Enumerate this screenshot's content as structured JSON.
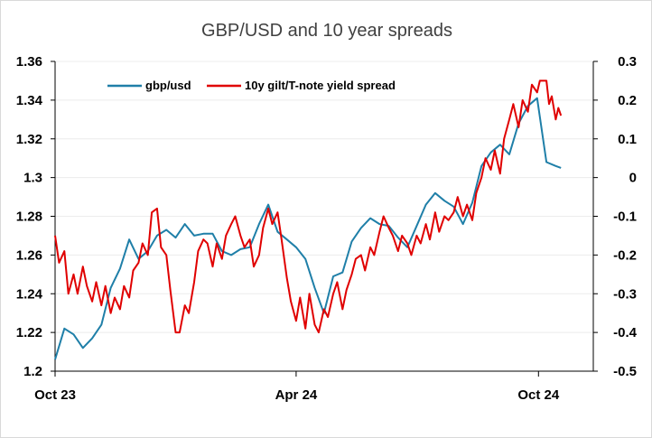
{
  "chart_data": {
    "type": "line",
    "title": "GBP/USD and 10 year spreads",
    "xlabel": "",
    "ylabel": "",
    "x_tick_labels": [
      "Oct 23",
      "Apr 24",
      "Oct 24"
    ],
    "x_range": [
      "2023-10-02",
      "2024-10-18"
    ],
    "x_tick_dates": [
      "2023-10-02",
      "2024-04-01",
      "2024-10-01"
    ],
    "y_left": {
      "lim": [
        1.2,
        1.36
      ],
      "ticks": [
        1.2,
        1.22,
        1.24,
        1.26,
        1.28,
        1.3,
        1.32,
        1.34,
        1.36
      ],
      "tick_labels": [
        "1.2",
        "1.22",
        "1.24",
        "1.26",
        "1.28",
        "1.3",
        "1.32",
        "1.34",
        "1.36"
      ]
    },
    "y_right": {
      "lim": [
        -0.5,
        0.3
      ],
      "ticks": [
        -0.5,
        -0.4,
        -0.3,
        -0.2,
        -0.1,
        0,
        0.1,
        0.2,
        0.3
      ],
      "tick_labels": [
        "-0.5",
        "-0.4",
        "-0.3",
        "-0.2",
        "-0.1",
        "0",
        "0.1",
        "0.2",
        "0.3"
      ]
    },
    "grid": true,
    "legend_position": "top-left",
    "series": [
      {
        "name": "gbp/usd",
        "axis": "left",
        "color": "#1f7fa8",
        "points": [
          [
            "2023-10-02",
            1.206
          ],
          [
            "2023-10-09",
            1.222
          ],
          [
            "2023-10-16",
            1.219
          ],
          [
            "2023-10-23",
            1.212
          ],
          [
            "2023-10-30",
            1.217
          ],
          [
            "2023-11-06",
            1.224
          ],
          [
            "2023-11-13",
            1.243
          ],
          [
            "2023-11-20",
            1.253
          ],
          [
            "2023-11-27",
            1.268
          ],
          [
            "2023-12-04",
            1.258
          ],
          [
            "2023-12-11",
            1.262
          ],
          [
            "2023-12-18",
            1.27
          ],
          [
            "2023-12-25",
            1.273
          ],
          [
            "2024-01-01",
            1.269
          ],
          [
            "2024-01-08",
            1.276
          ],
          [
            "2024-01-15",
            1.27
          ],
          [
            "2024-01-22",
            1.271
          ],
          [
            "2024-01-29",
            1.271
          ],
          [
            "2024-02-05",
            1.262
          ],
          [
            "2024-02-12",
            1.26
          ],
          [
            "2024-02-19",
            1.263
          ],
          [
            "2024-02-26",
            1.264
          ],
          [
            "2024-03-04",
            1.276
          ],
          [
            "2024-03-11",
            1.286
          ],
          [
            "2024-03-18",
            1.272
          ],
          [
            "2024-03-25",
            1.268
          ],
          [
            "2024-04-01",
            1.264
          ],
          [
            "2024-04-08",
            1.258
          ],
          [
            "2024-04-15",
            1.243
          ],
          [
            "2024-04-22",
            1.23
          ],
          [
            "2024-04-29",
            1.249
          ],
          [
            "2024-05-06",
            1.251
          ],
          [
            "2024-05-13",
            1.267
          ],
          [
            "2024-05-20",
            1.274
          ],
          [
            "2024-05-27",
            1.279
          ],
          [
            "2024-06-03",
            1.276
          ],
          [
            "2024-06-10",
            1.275
          ],
          [
            "2024-06-17",
            1.269
          ],
          [
            "2024-06-24",
            1.264
          ],
          [
            "2024-07-01",
            1.275
          ],
          [
            "2024-07-08",
            1.286
          ],
          [
            "2024-07-15",
            1.292
          ],
          [
            "2024-07-22",
            1.288
          ],
          [
            "2024-07-29",
            1.285
          ],
          [
            "2024-08-05",
            1.276
          ],
          [
            "2024-08-12",
            1.287
          ],
          [
            "2024-08-19",
            1.306
          ],
          [
            "2024-08-26",
            1.313
          ],
          [
            "2024-09-02",
            1.317
          ],
          [
            "2024-09-09",
            1.312
          ],
          [
            "2024-09-16",
            1.328
          ],
          [
            "2024-09-23",
            1.337
          ],
          [
            "2024-09-30",
            1.341
          ],
          [
            "2024-10-07",
            1.308
          ],
          [
            "2024-10-14",
            1.306
          ],
          [
            "2024-10-18",
            1.305
          ]
        ]
      },
      {
        "name": "10y gilt/T-note yield spread",
        "axis": "right",
        "color": "#e00000",
        "points": [
          [
            "2023-10-02",
            -0.15
          ],
          [
            "2023-10-05",
            -0.22
          ],
          [
            "2023-10-09",
            -0.19
          ],
          [
            "2023-10-12",
            -0.3
          ],
          [
            "2023-10-16",
            -0.25
          ],
          [
            "2023-10-19",
            -0.3
          ],
          [
            "2023-10-23",
            -0.23
          ],
          [
            "2023-10-26",
            -0.28
          ],
          [
            "2023-10-30",
            -0.32
          ],
          [
            "2023-11-02",
            -0.27
          ],
          [
            "2023-11-06",
            -0.33
          ],
          [
            "2023-11-09",
            -0.28
          ],
          [
            "2023-11-13",
            -0.35
          ],
          [
            "2023-11-16",
            -0.31
          ],
          [
            "2023-11-20",
            -0.34
          ],
          [
            "2023-11-23",
            -0.28
          ],
          [
            "2023-11-27",
            -0.31
          ],
          [
            "2023-11-30",
            -0.24
          ],
          [
            "2023-12-04",
            -0.22
          ],
          [
            "2023-12-07",
            -0.17
          ],
          [
            "2023-12-11",
            -0.2
          ],
          [
            "2023-12-14",
            -0.09
          ],
          [
            "2023-12-18",
            -0.08
          ],
          [
            "2023-12-21",
            -0.18
          ],
          [
            "2023-12-25",
            -0.2
          ],
          [
            "2023-12-28",
            -0.29
          ],
          [
            "2024-01-01",
            -0.4
          ],
          [
            "2024-01-04",
            -0.4
          ],
          [
            "2024-01-08",
            -0.33
          ],
          [
            "2024-01-11",
            -0.35
          ],
          [
            "2024-01-15",
            -0.27
          ],
          [
            "2024-01-18",
            -0.19
          ],
          [
            "2024-01-22",
            -0.16
          ],
          [
            "2024-01-25",
            -0.17
          ],
          [
            "2024-01-29",
            -0.23
          ],
          [
            "2024-02-01",
            -0.17
          ],
          [
            "2024-02-05",
            -0.21
          ],
          [
            "2024-02-08",
            -0.15
          ],
          [
            "2024-02-12",
            -0.12
          ],
          [
            "2024-02-15",
            -0.1
          ],
          [
            "2024-02-19",
            -0.15
          ],
          [
            "2024-02-22",
            -0.18
          ],
          [
            "2024-02-26",
            -0.16
          ],
          [
            "2024-02-29",
            -0.23
          ],
          [
            "2024-03-04",
            -0.2
          ],
          [
            "2024-03-07",
            -0.13
          ],
          [
            "2024-03-11",
            -0.08
          ],
          [
            "2024-03-14",
            -0.12
          ],
          [
            "2024-03-18",
            -0.09
          ],
          [
            "2024-03-21",
            -0.16
          ],
          [
            "2024-03-25",
            -0.26
          ],
          [
            "2024-03-28",
            -0.32
          ],
          [
            "2024-04-01",
            -0.37
          ],
          [
            "2024-04-04",
            -0.31
          ],
          [
            "2024-04-08",
            -0.39
          ],
          [
            "2024-04-11",
            -0.3
          ],
          [
            "2024-04-15",
            -0.38
          ],
          [
            "2024-04-18",
            -0.4
          ],
          [
            "2024-04-22",
            -0.34
          ],
          [
            "2024-04-25",
            -0.36
          ],
          [
            "2024-04-29",
            -0.3
          ],
          [
            "2024-05-02",
            -0.27
          ],
          [
            "2024-05-06",
            -0.34
          ],
          [
            "2024-05-09",
            -0.29
          ],
          [
            "2024-05-13",
            -0.25
          ],
          [
            "2024-05-16",
            -0.21
          ],
          [
            "2024-05-20",
            -0.2
          ],
          [
            "2024-05-23",
            -0.24
          ],
          [
            "2024-05-27",
            -0.18
          ],
          [
            "2024-05-30",
            -0.2
          ],
          [
            "2024-06-03",
            -0.14
          ],
          [
            "2024-06-06",
            -0.1
          ],
          [
            "2024-06-10",
            -0.13
          ],
          [
            "2024-06-13",
            -0.15
          ],
          [
            "2024-06-17",
            -0.19
          ],
          [
            "2024-06-20",
            -0.15
          ],
          [
            "2024-06-24",
            -0.17
          ],
          [
            "2024-06-27",
            -0.2
          ],
          [
            "2024-07-01",
            -0.15
          ],
          [
            "2024-07-04",
            -0.17
          ],
          [
            "2024-07-08",
            -0.12
          ],
          [
            "2024-07-11",
            -0.16
          ],
          [
            "2024-07-15",
            -0.09
          ],
          [
            "2024-07-18",
            -0.14
          ],
          [
            "2024-07-22",
            -0.1
          ],
          [
            "2024-07-25",
            -0.11
          ],
          [
            "2024-07-29",
            -0.09
          ],
          [
            "2024-08-01",
            -0.05
          ],
          [
            "2024-08-05",
            -0.1
          ],
          [
            "2024-08-08",
            -0.07
          ],
          [
            "2024-08-12",
            -0.11
          ],
          [
            "2024-08-15",
            -0.04
          ],
          [
            "2024-08-19",
            0.0
          ],
          [
            "2024-08-22",
            0.05
          ],
          [
            "2024-08-26",
            0.02
          ],
          [
            "2024-08-29",
            0.07
          ],
          [
            "2024-09-02",
            0.01
          ],
          [
            "2024-09-05",
            0.1
          ],
          [
            "2024-09-09",
            0.15
          ],
          [
            "2024-09-12",
            0.19
          ],
          [
            "2024-09-16",
            0.13
          ],
          [
            "2024-09-19",
            0.2
          ],
          [
            "2024-09-23",
            0.17
          ],
          [
            "2024-09-26",
            0.24
          ],
          [
            "2024-09-30",
            0.22
          ],
          [
            "2024-10-02",
            0.25
          ],
          [
            "2024-10-07",
            0.25
          ],
          [
            "2024-10-09",
            0.19
          ],
          [
            "2024-10-11",
            0.21
          ],
          [
            "2024-10-14",
            0.15
          ],
          [
            "2024-10-16",
            0.18
          ],
          [
            "2024-10-18",
            0.16
          ]
        ]
      }
    ]
  }
}
